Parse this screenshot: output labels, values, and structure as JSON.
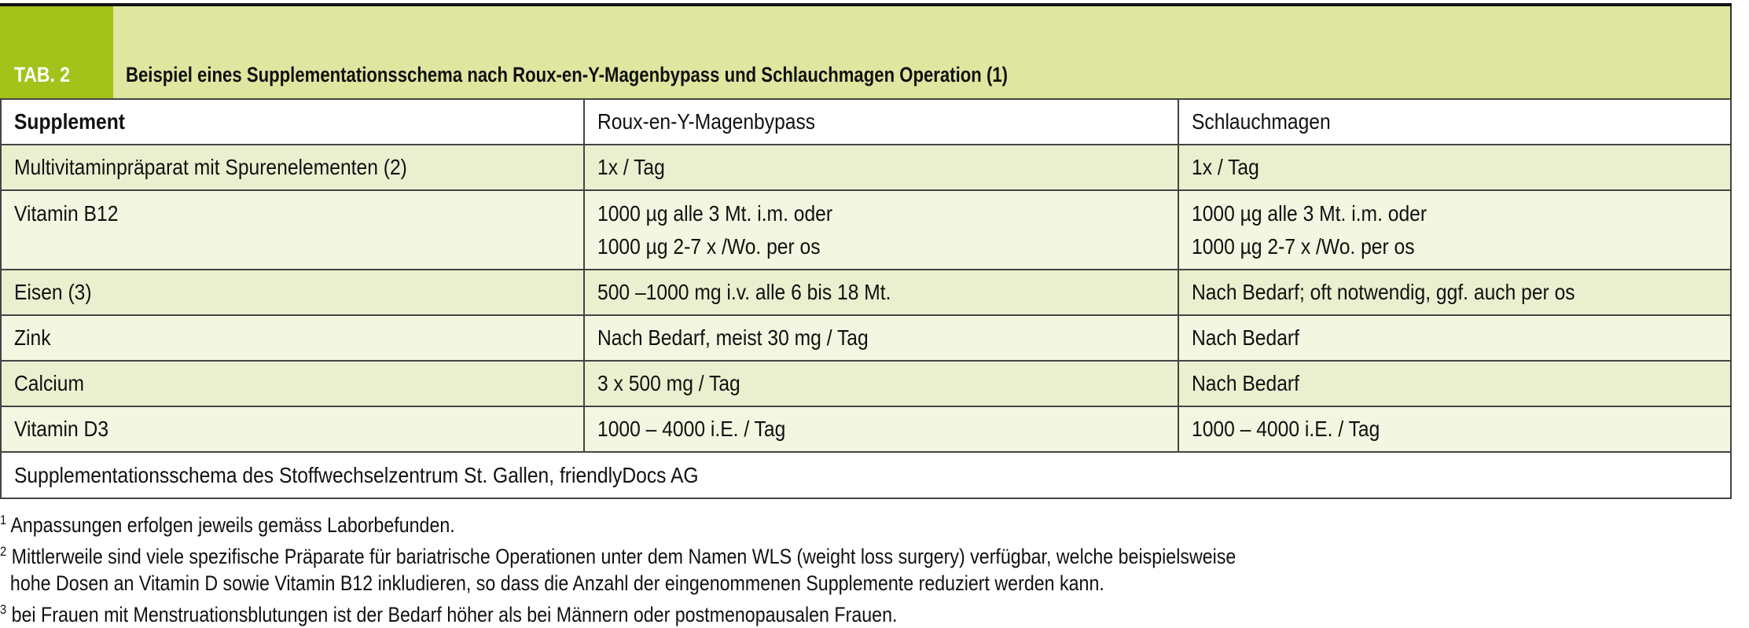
{
  "header": {
    "tab_label": "TAB. 2",
    "title": "Beispiel eines Supplementationsschema nach Roux-en-Y-Magenbypass und Schlauchmagen Operation (1)"
  },
  "colors": {
    "tab_green": "#a3c21a",
    "band": "#dfe6a0",
    "row_a": "#eaf0cf",
    "row_b": "#f3f6e0"
  },
  "table": {
    "columns": [
      "Supplement",
      "Roux-en-Y-Magenbypass",
      "Schlauchmagen"
    ],
    "rows": [
      {
        "supplement": "Multivitaminpräparat mit Spurenelementen (2)",
        "bypass": [
          "1x / Tag"
        ],
        "sleeve": [
          "1x / Tag"
        ]
      },
      {
        "supplement": "Vitamin B12",
        "bypass": [
          "1000 µg alle 3 Mt. i.m. oder",
          "1000 µg 2-7 x /Wo. per os"
        ],
        "sleeve": [
          "1000 µg alle 3 Mt. i.m. oder",
          "1000 µg 2-7 x /Wo. per os"
        ]
      },
      {
        "supplement": "Eisen (3)",
        "bypass": [
          "500 –1000 mg i.v. alle 6 bis 18 Mt."
        ],
        "sleeve": [
          "Nach Bedarf; oft notwendig, ggf. auch per os"
        ]
      },
      {
        "supplement": "Zink",
        "bypass": [
          "Nach Bedarf, meist 30 mg / Tag"
        ],
        "sleeve": [
          "Nach Bedarf"
        ]
      },
      {
        "supplement": "Calcium",
        "bypass": [
          "3 x 500 mg / Tag"
        ],
        "sleeve": [
          "Nach Bedarf"
        ]
      },
      {
        "supplement": "Vitamin D3",
        "bypass": [
          "1000 – 4000 i.E. / Tag"
        ],
        "sleeve": [
          "1000 – 4000 i.E. / Tag"
        ]
      }
    ],
    "source": "Supplementationsschema des Stoffwechselzentrum St. Gallen, friendlyDocs AG"
  },
  "footnotes": [
    {
      "num": "1",
      "lines": [
        "Anpassungen erfolgen jeweils gemäss Laborbefunden."
      ]
    },
    {
      "num": "2",
      "lines": [
        "Mittlerweile sind viele spezifische Präparate für bariatrische Operationen unter dem Namen WLS (weight loss surgery) verfügbar, welche beispielsweise",
        "hohe Dosen an Vitamin D sowie Vitamin B12 inkludieren, so dass die Anzahl der eingenommenen Supplemente reduziert werden kann."
      ]
    },
    {
      "num": "3",
      "lines": [
        "bei Frauen mit Menstruationsblutungen ist der Bedarf höher als bei Männern oder postmenopausalen Frauen."
      ]
    }
  ]
}
